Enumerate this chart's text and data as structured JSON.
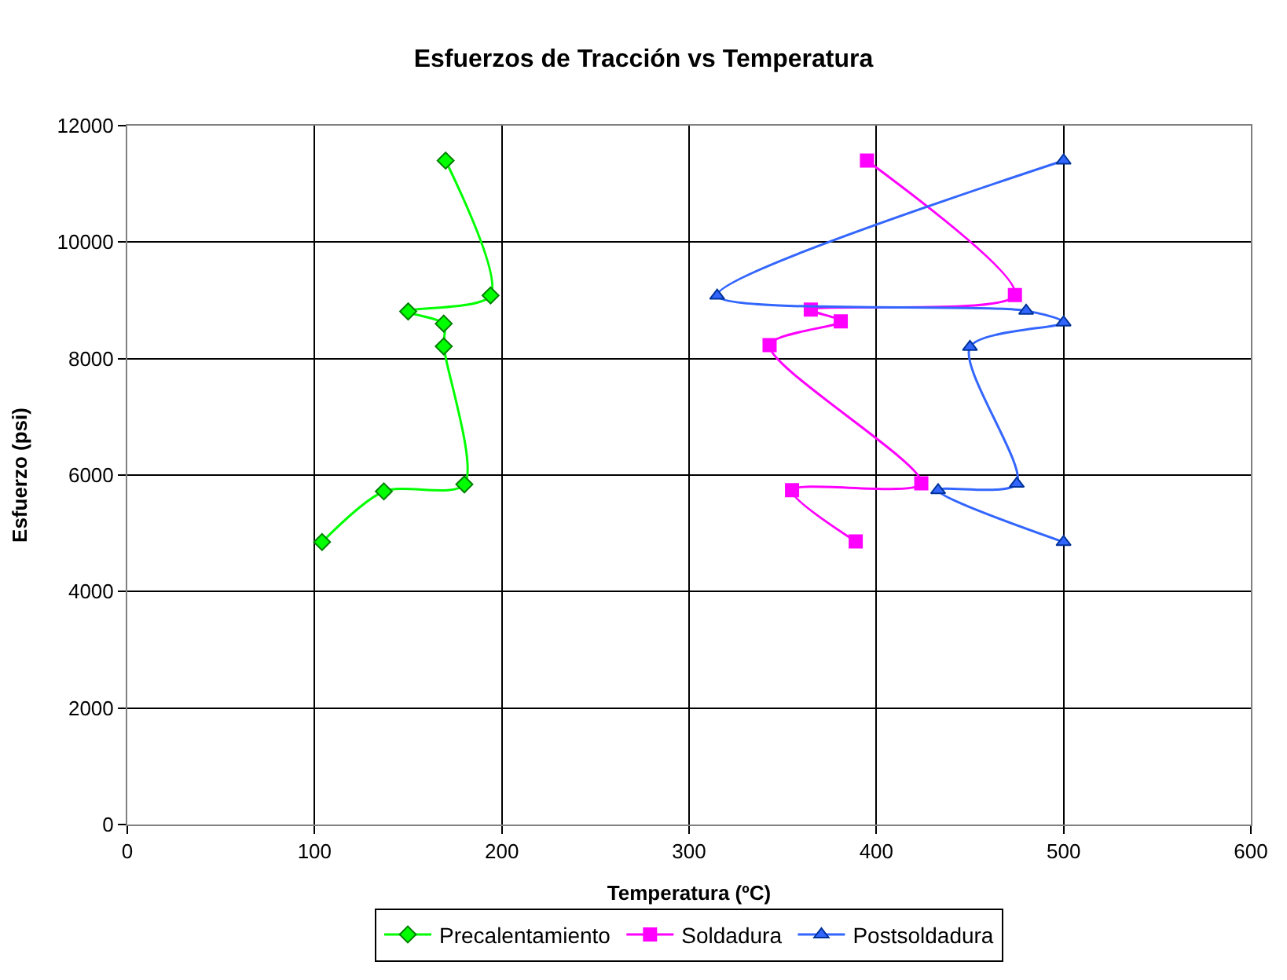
{
  "chart_data": {
    "type": "line",
    "title": "Esfuerzos de Tracción vs Temperatura",
    "xlabel": "Temperatura (ºC)",
    "ylabel": "Esfuerzo (psi)",
    "xlim": [
      0,
      600
    ],
    "xticks": [
      0,
      100,
      200,
      300,
      400,
      500,
      600
    ],
    "ylim": [
      0,
      12000
    ],
    "yticks": [
      0,
      2000,
      4000,
      6000,
      8000,
      10000,
      12000
    ],
    "grid": true,
    "legend": "bottom",
    "series": [
      {
        "name": "Precalentamiento",
        "color": "#00ff00",
        "marker": "diamond",
        "x": [
          170,
          194,
          150,
          169,
          169,
          180,
          137,
          104
        ],
        "values": [
          11400,
          9085,
          8810,
          8600,
          8210,
          5840,
          5720,
          4850
        ]
      },
      {
        "name": "Soldadura",
        "color": "#ff00ff",
        "marker": "square",
        "x": [
          395,
          474,
          365,
          381,
          343,
          424,
          355,
          389
        ],
        "values": [
          11400,
          9090,
          8840,
          8640,
          8230,
          5860,
          5740,
          4860
        ]
      },
      {
        "name": "Postsoldadura",
        "color": "#3366ff",
        "marker": "triangle",
        "x": [
          500,
          315,
          480,
          500,
          450,
          475,
          433,
          500
        ],
        "values": [
          11400,
          9080,
          8820,
          8620,
          8200,
          5850,
          5740,
          4850
        ]
      }
    ]
  }
}
